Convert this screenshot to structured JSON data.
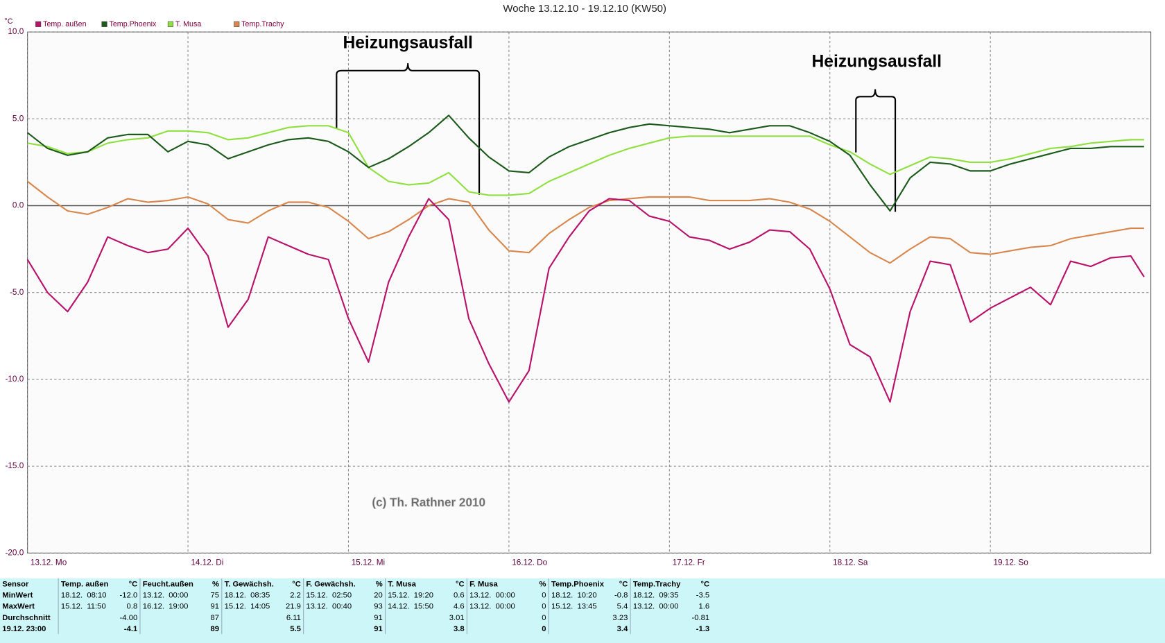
{
  "chart_data": {
    "type": "line",
    "title": "Woche 13.12.10 - 19.12.10 (KW50)",
    "y_label": "°C",
    "annotations": [
      "Heizungsausfall",
      "Heizungsausfall"
    ],
    "copyright": "(c) Th. Rathner 2010",
    "xlim": [
      0,
      7
    ],
    "xticks": [
      {
        "value": 0,
        "label": "13.12. Mo"
      },
      {
        "value": 1,
        "label": "14.12. Di"
      },
      {
        "value": 2,
        "label": "15.12. Mi"
      },
      {
        "value": 3,
        "label": "16.12. Do"
      },
      {
        "value": 4,
        "label": "17.12. Fr"
      },
      {
        "value": 5,
        "label": "18.12. Sa"
      },
      {
        "value": 6,
        "label": "19.12. So"
      }
    ],
    "ylim": [
      -20,
      10
    ],
    "yticks": [
      {
        "value": 10,
        "label": "10.0"
      },
      {
        "value": 5,
        "label": "5.0"
      },
      {
        "value": 0,
        "label": "0.0"
      },
      {
        "value": -5,
        "label": "-5.0"
      },
      {
        "value": -10,
        "label": "-10.0"
      },
      {
        "value": -15,
        "label": "-15.0"
      },
      {
        "value": -20,
        "label": "-20.0"
      }
    ],
    "grid": true,
    "x": [
      0,
      0.125,
      0.25,
      0.375,
      0.5,
      0.625,
      0.75,
      0.875,
      1,
      1.125,
      1.25,
      1.375,
      1.5,
      1.625,
      1.75,
      1.875,
      2,
      2.125,
      2.25,
      2.375,
      2.5,
      2.625,
      2.75,
      2.875,
      3,
      3.125,
      3.25,
      3.375,
      3.5,
      3.625,
      3.75,
      3.875,
      4,
      4.125,
      4.25,
      4.375,
      4.5,
      4.625,
      4.75,
      4.875,
      5,
      5.125,
      5.25,
      5.375,
      5.5,
      5.625,
      5.75,
      5.875,
      6,
      6.125,
      6.25,
      6.375,
      6.5,
      6.625,
      6.75,
      6.875,
      6.958
    ],
    "series": [
      {
        "name": "Temp. außen",
        "color": "#b8126a",
        "values": [
          -3.1,
          -5.0,
          -6.1,
          -4.4,
          -1.8,
          -2.3,
          -2.7,
          -2.5,
          -1.3,
          -2.9,
          -7.0,
          -5.4,
          -1.8,
          -2.3,
          -2.8,
          -3.1,
          -6.5,
          -9.0,
          -4.4,
          -1.8,
          0.4,
          -0.8,
          -6.5,
          -9.1,
          -11.3,
          -9.5,
          -3.6,
          -1.8,
          -0.3,
          0.4,
          0.3,
          -0.6,
          -0.9,
          -1.8,
          -2.0,
          -2.5,
          -2.1,
          -1.4,
          -1.5,
          -2.5,
          -4.8,
          -8.0,
          -8.7,
          -11.3,
          -6.1,
          -3.2,
          -3.4,
          -6.7,
          -5.9,
          -5.3,
          -4.7,
          -5.7,
          -3.2,
          -3.5,
          -3.0,
          -2.9,
          -4.1
        ]
      },
      {
        "name": "Temp.Phoenix",
        "color": "#1b5a1b",
        "values": [
          4.2,
          3.3,
          2.9,
          3.1,
          3.9,
          4.1,
          4.1,
          3.1,
          3.7,
          3.5,
          2.7,
          3.1,
          3.5,
          3.8,
          3.9,
          3.7,
          3.1,
          2.2,
          2.7,
          3.4,
          4.2,
          5.2,
          3.9,
          2.8,
          2.0,
          1.9,
          2.8,
          3.4,
          3.8,
          4.2,
          4.5,
          4.7,
          4.6,
          4.5,
          4.4,
          4.2,
          4.4,
          4.6,
          4.6,
          4.2,
          3.7,
          2.9,
          1.2,
          -0.3,
          1.6,
          2.5,
          2.4,
          2.0,
          2.0,
          2.4,
          2.7,
          3.0,
          3.3,
          3.3,
          3.4,
          3.4,
          3.4
        ]
      },
      {
        "name": "T. Musa",
        "color": "#8fe040",
        "values": [
          3.6,
          3.4,
          3.0,
          3.1,
          3.6,
          3.8,
          3.9,
          4.3,
          4.3,
          4.2,
          3.8,
          3.9,
          4.2,
          4.5,
          4.6,
          4.6,
          4.2,
          2.2,
          1.4,
          1.2,
          1.3,
          1.9,
          0.8,
          0.6,
          0.6,
          0.7,
          1.4,
          1.9,
          2.4,
          2.9,
          3.3,
          3.6,
          3.9,
          4.0,
          4.0,
          4.0,
          4.0,
          4.0,
          4.0,
          4.0,
          3.5,
          3.1,
          2.4,
          1.8,
          2.3,
          2.8,
          2.7,
          2.5,
          2.5,
          2.7,
          3.0,
          3.3,
          3.4,
          3.6,
          3.7,
          3.8,
          3.8
        ]
      },
      {
        "name": "Temp.Trachy",
        "color": "#d8884e",
        "values": [
          1.4,
          0.5,
          -0.3,
          -0.5,
          -0.1,
          0.4,
          0.2,
          0.3,
          0.5,
          0.1,
          -0.8,
          -1.0,
          -0.3,
          0.2,
          0.2,
          -0.1,
          -0.9,
          -1.9,
          -1.5,
          -0.8,
          0.0,
          0.4,
          0.2,
          -1.4,
          -2.6,
          -2.7,
          -1.6,
          -0.8,
          -0.1,
          0.3,
          0.4,
          0.5,
          0.5,
          0.5,
          0.3,
          0.3,
          0.3,
          0.4,
          0.2,
          -0.2,
          -0.9,
          -1.8,
          -2.7,
          -3.3,
          -2.5,
          -1.8,
          -1.9,
          -2.7,
          -2.8,
          -2.6,
          -2.4,
          -2.3,
          -1.9,
          -1.7,
          -1.5,
          -1.3,
          -1.3
        ]
      }
    ]
  },
  "table": {
    "corner": "Sensor",
    "columns": [
      {
        "name": "Temp. außen",
        "unit": "°C"
      },
      {
        "name": "Feucht.außen",
        "unit": "%"
      },
      {
        "name": "T. Gewächsh.",
        "unit": "°C"
      },
      {
        "name": "F. Gewächsh.",
        "unit": "%"
      },
      {
        "name": "T. Musa",
        "unit": "°C"
      },
      {
        "name": "F. Musa",
        "unit": "%"
      },
      {
        "name": "Temp.Phoenix",
        "unit": "°C"
      },
      {
        "name": "Temp.Trachy",
        "unit": "°C"
      }
    ],
    "rows": [
      {
        "label": "MinWert",
        "cells": [
          {
            "time": "18.12.  08:10",
            "value": "-12.0"
          },
          {
            "time": "13.12.  00:00",
            "value": "75"
          },
          {
            "time": "18.12.  08:35",
            "value": "2.2"
          },
          {
            "time": "15.12.  02:50",
            "value": "20"
          },
          {
            "time": "15.12.  19:20",
            "value": "0.6"
          },
          {
            "time": "13.12.  00:00",
            "value": "0"
          },
          {
            "time": "18.12.  10:20",
            "value": "-0.8"
          },
          {
            "time": "18.12.  09:35",
            "value": "-3.5"
          }
        ]
      },
      {
        "label": "MaxWert",
        "cells": [
          {
            "time": "15.12.  11:50",
            "value": "0.8"
          },
          {
            "time": "16.12.  19:00",
            "value": "91"
          },
          {
            "time": "15.12.  14:05",
            "value": "21.9"
          },
          {
            "time": "13.12.  00:40",
            "value": "93"
          },
          {
            "time": "14.12.  15:50",
            "value": "4.6"
          },
          {
            "time": "13.12.  00:00",
            "value": "0"
          },
          {
            "time": "15.12.  13:45",
            "value": "5.4"
          },
          {
            "time": "13.12.  00:00",
            "value": "1.6"
          }
        ]
      },
      {
        "label": "Durchschnitt",
        "cells": [
          {
            "value": "-4.00"
          },
          {
            "value": "87"
          },
          {
            "value": "6.11"
          },
          {
            "value": "91"
          },
          {
            "value": "3.01"
          },
          {
            "value": "0"
          },
          {
            "value": "3.23"
          },
          {
            "value": "-0.81"
          }
        ]
      },
      {
        "label": "19.12. 23:00",
        "cells": [
          {
            "value": "-4.1"
          },
          {
            "value": "89"
          },
          {
            "value": "5.5"
          },
          {
            "value": "91"
          },
          {
            "value": "3.8"
          },
          {
            "value": "0"
          },
          {
            "value": "3.4"
          },
          {
            "value": "-1.3"
          }
        ]
      }
    ]
  }
}
